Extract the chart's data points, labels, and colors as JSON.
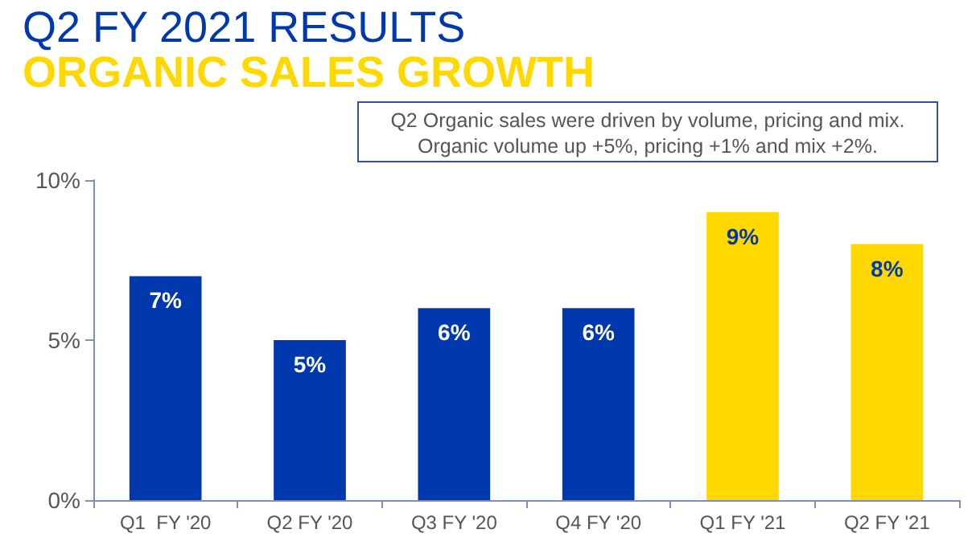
{
  "chart_data": {
    "type": "bar",
    "title": "Q2 FY 2021 RESULTS",
    "subtitle": "ORGANIC SALES GROWTH",
    "annotations": [
      "Q2 Organic sales were driven by volume, pricing and mix.\nOrganic volume up +5%, pricing +1% and mix +2%."
    ],
    "categories": [
      "Q1  FY '20",
      "Q2 FY '20",
      "Q3 FY '20",
      "Q4 FY '20",
      "Q1 FY '21",
      "Q2 FY '21"
    ],
    "values": [
      7,
      5,
      6,
      6,
      9,
      8
    ],
    "colors": [
      "#0038ae",
      "#0038ae",
      "#0038ae",
      "#0038ae",
      "#ffd800",
      "#ffd800"
    ],
    "value_labels": [
      "7%",
      "5%",
      "6%",
      "6%",
      "9%",
      "8%"
    ],
    "ylim": [
      0,
      10
    ],
    "yticks": [
      {
        "value": 0,
        "label": "0%"
      },
      {
        "value": 5,
        "label": "5%"
      },
      {
        "value": 10,
        "label": "10%"
      }
    ],
    "grid": false
  }
}
